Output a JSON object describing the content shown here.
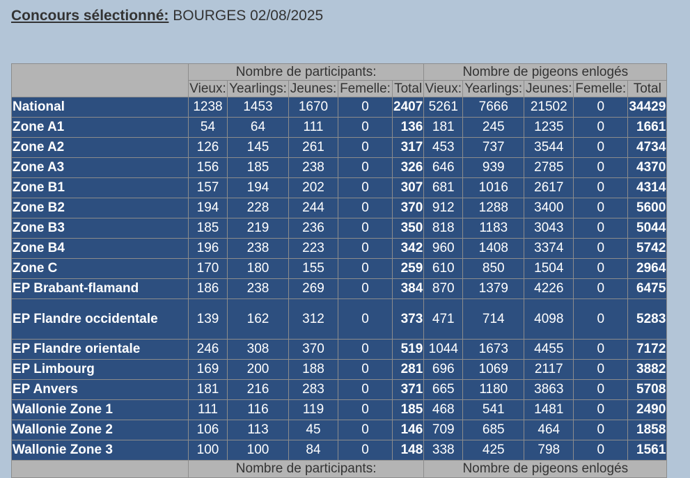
{
  "heading": {
    "label": "Concours sélectionné:",
    "value": "BOURGES 02/08/2025"
  },
  "table": {
    "group_participants": "Nombre de participants:",
    "group_pigeons": "Nombre de pigeons enlogés",
    "columns": [
      "Vieux:",
      "Yearlings:",
      "Jeunes:",
      "Femelle:",
      "Total",
      "Vieux:",
      "Yearlings:",
      "Jeunes:",
      "Femelle:",
      "Total"
    ],
    "rows": [
      {
        "name": "National",
        "values": [
          "1238",
          "1453",
          "1670",
          "0",
          "2407",
          "5261",
          "7666",
          "21502",
          "0",
          "34429"
        ]
      },
      {
        "name": "Zone A1",
        "values": [
          "54",
          "64",
          "111",
          "0",
          "136",
          "181",
          "245",
          "1235",
          "0",
          "1661"
        ]
      },
      {
        "name": "Zone A2",
        "values": [
          "126",
          "145",
          "261",
          "0",
          "317",
          "453",
          "737",
          "3544",
          "0",
          "4734"
        ]
      },
      {
        "name": "Zone A3",
        "values": [
          "156",
          "185",
          "238",
          "0",
          "326",
          "646",
          "939",
          "2785",
          "0",
          "4370"
        ]
      },
      {
        "name": "Zone B1",
        "values": [
          "157",
          "194",
          "202",
          "0",
          "307",
          "681",
          "1016",
          "2617",
          "0",
          "4314"
        ]
      },
      {
        "name": "Zone B2",
        "values": [
          "194",
          "228",
          "244",
          "0",
          "370",
          "912",
          "1288",
          "3400",
          "0",
          "5600"
        ]
      },
      {
        "name": "Zone B3",
        "values": [
          "185",
          "219",
          "236",
          "0",
          "350",
          "818",
          "1183",
          "3043",
          "0",
          "5044"
        ]
      },
      {
        "name": "Zone B4",
        "values": [
          "196",
          "238",
          "223",
          "0",
          "342",
          "960",
          "1408",
          "3374",
          "0",
          "5742"
        ]
      },
      {
        "name": "Zone C",
        "values": [
          "170",
          "180",
          "155",
          "0",
          "259",
          "610",
          "850",
          "1504",
          "0",
          "2964"
        ]
      },
      {
        "name": "EP Brabant-flamand",
        "values": [
          "186",
          "238",
          "269",
          "0",
          "384",
          "870",
          "1379",
          "4226",
          "0",
          "6475"
        ]
      },
      {
        "name": "EP Flandre occidentale",
        "values": [
          "139",
          "162",
          "312",
          "0",
          "373",
          "471",
          "714",
          "4098",
          "0",
          "5283"
        ]
      },
      {
        "name": "EP Flandre orientale",
        "values": [
          "246",
          "308",
          "370",
          "0",
          "519",
          "1044",
          "1673",
          "4455",
          "0",
          "7172"
        ]
      },
      {
        "name": "EP Limbourg",
        "values": [
          "169",
          "200",
          "188",
          "0",
          "281",
          "696",
          "1069",
          "2117",
          "0",
          "3882"
        ]
      },
      {
        "name": "EP Anvers",
        "values": [
          "181",
          "216",
          "283",
          "0",
          "371",
          "665",
          "1180",
          "3863",
          "0",
          "5708"
        ]
      },
      {
        "name": "Wallonie Zone 1",
        "values": [
          "111",
          "116",
          "119",
          "0",
          "185",
          "468",
          "541",
          "1481",
          "0",
          "2490"
        ]
      },
      {
        "name": "Wallonie Zone 2",
        "values": [
          "106",
          "113",
          "45",
          "0",
          "146",
          "709",
          "685",
          "464",
          "0",
          "1858"
        ]
      },
      {
        "name": "Wallonie Zone 3",
        "values": [
          "100",
          "100",
          "84",
          "0",
          "148",
          "338",
          "425",
          "798",
          "0",
          "1561"
        ]
      }
    ]
  }
}
